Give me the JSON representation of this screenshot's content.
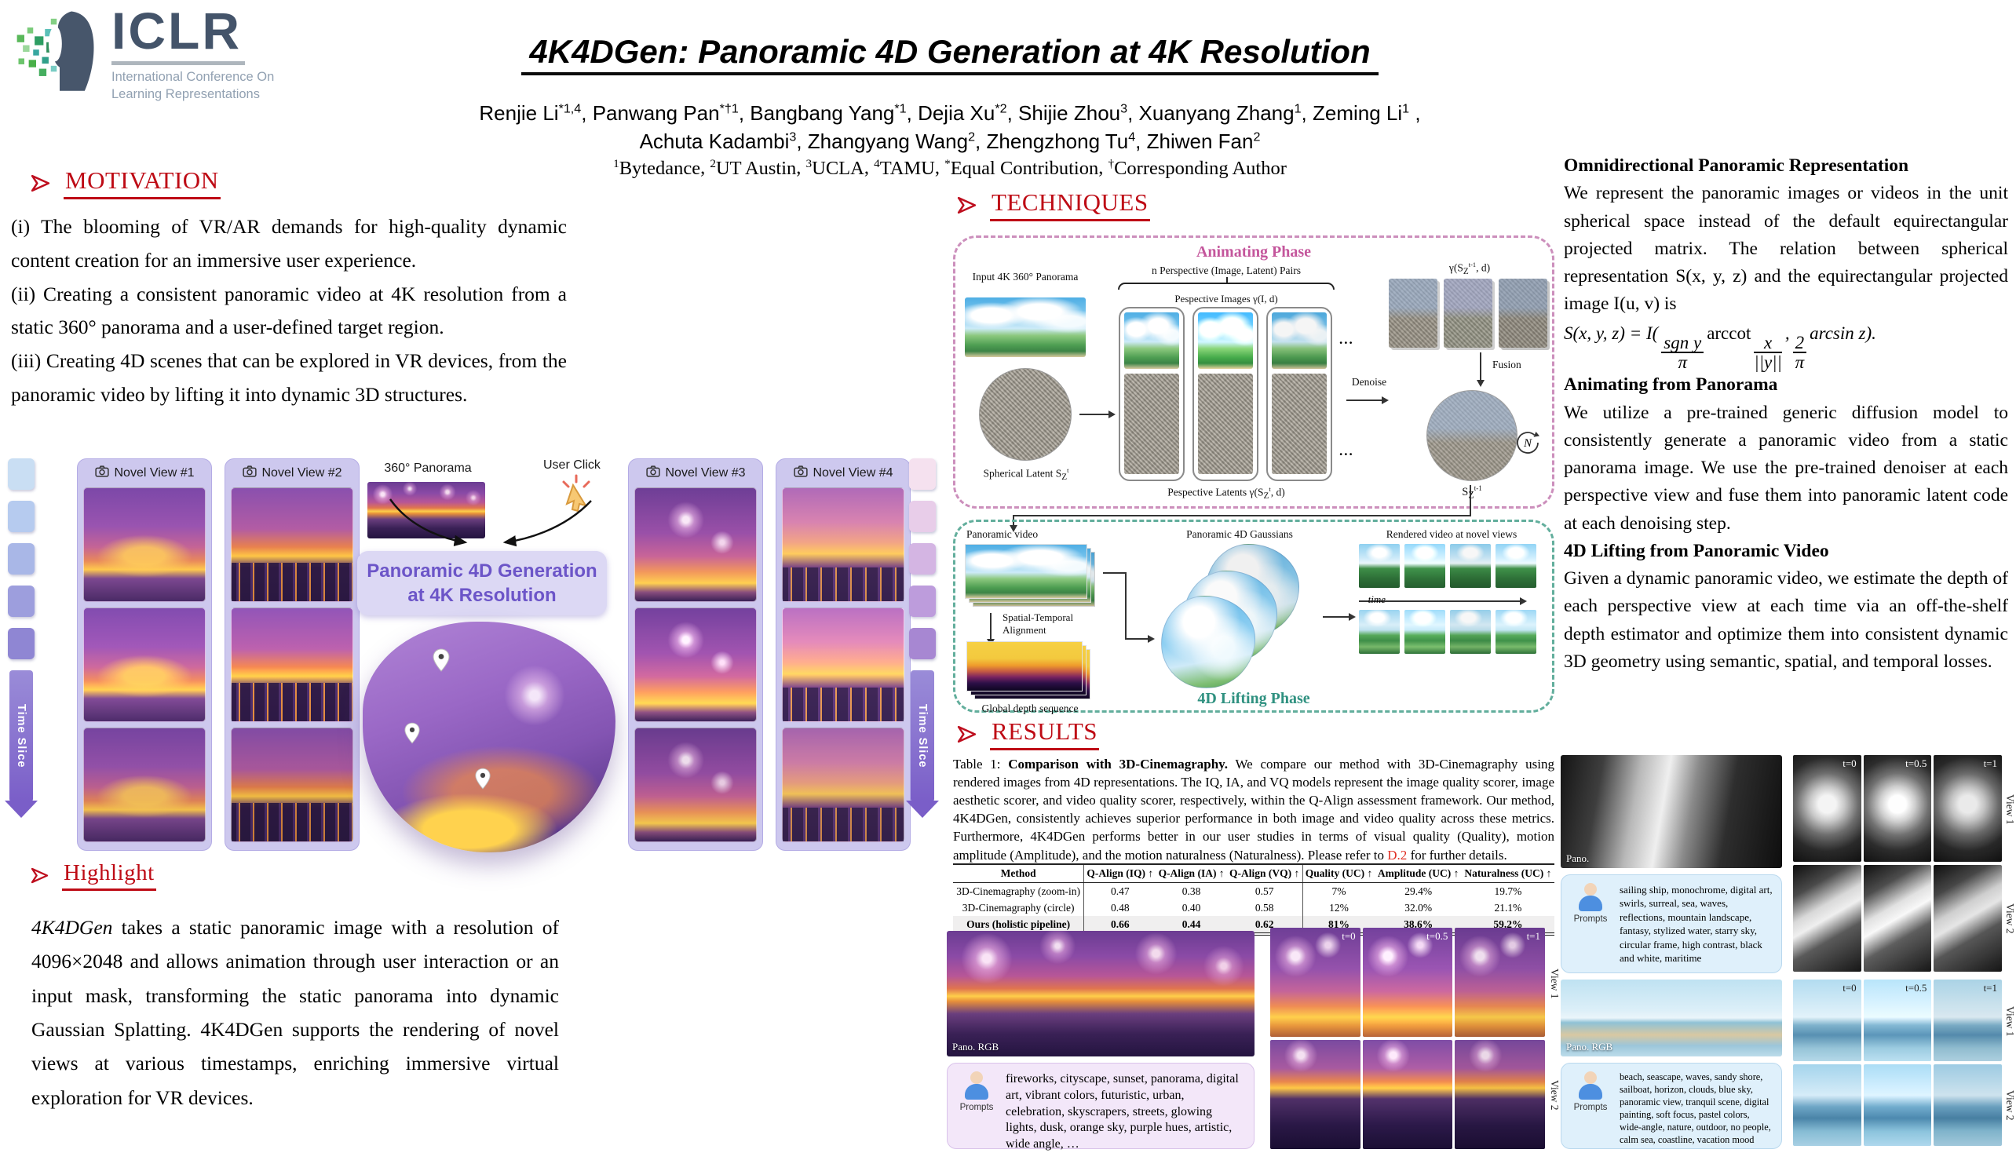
{
  "logo": {
    "acronym": "ICLR",
    "subtitle_line1": "International Conference On",
    "subtitle_line2": "Learning Representations"
  },
  "header": {
    "title": "4K4DGen: Panoramic 4D Generation at 4K Resolution",
    "authors_line1": [
      {
        "name": "Renjie Li",
        "sup": "*1,4"
      },
      {
        "name": "Panwang Pan",
        "sup": "*†1"
      },
      {
        "name": "Bangbang Yang",
        "sup": "*1"
      },
      {
        "name": "Dejia Xu",
        "sup": "*2"
      },
      {
        "name": "Shijie Zhou",
        "sup": "3"
      },
      {
        "name": "Xuanyang Zhang",
        "sup": "1"
      },
      {
        "name": "Zeming Li",
        "sup": "1"
      }
    ],
    "authors_line1_trailing": " ,",
    "authors_line2": [
      {
        "name": "Achuta Kadambi",
        "sup": "3"
      },
      {
        "name": "Zhangyang Wang",
        "sup": "2"
      },
      {
        "name": "Zhengzhong Tu",
        "sup": "4"
      },
      {
        "name": "Zhiwen Fan",
        "sup": "2"
      }
    ],
    "affiliations": [
      {
        "sup": "1",
        "text": "Bytedance"
      },
      {
        "sup": "2",
        "text": "UT Austin"
      },
      {
        "sup": "3",
        "text": "UCLA"
      },
      {
        "sup": "4",
        "text": "TAMU"
      },
      {
        "sup": "*",
        "text": "Equal Contribution"
      },
      {
        "sup": "†",
        "text": "Corresponding Author"
      }
    ]
  },
  "motivation": {
    "heading": "MOTIVATION",
    "items": [
      "(i) The blooming of VR/AR demands for high-quality dynamic content creation for an immersive user experience.",
      "(ii) Creating a consistent panoramic video at 4K resolution from a static 360° panorama and a user-defined target region.",
      "(iii) Creating 4D scenes that can be explored in VR devices, from the panoramic video by lifting it into dynamic 3D structures."
    ]
  },
  "teaser": {
    "novel_views": [
      "Novel View #1",
      "Novel View #2",
      "Novel View #3",
      "Novel View #4"
    ],
    "panorama_label": "360° Panorama",
    "user_click_label": "User Click",
    "center_box_line1": "Panoramic 4D Generation",
    "center_box_line2": "at 4K Resolution",
    "time_slice_label": "Time Slice"
  },
  "highlight": {
    "heading": "Highlight",
    "lead": "4K4DGen",
    "text": " takes a static panoramic image with a resolution of 4096×2048 and allows animation through user interaction or an input mask, transforming the static panorama into dynamic Gaussian Splatting. 4K4DGen supports the rendering of novel views at various timestamps, enriching immersive virtual exploration for VR devices."
  },
  "techniques": {
    "heading": "TECHNIQUES",
    "animating": {
      "title": "Animating Phase",
      "input_label": "Input 4K 360° Panorama",
      "spherical_latent_label": "Spherical Latent S_{Z}^{t}",
      "pairs_label": "n Perspective (Image, Latent) Pairs",
      "persp_images_label": "Pespective Images γ(I, d)",
      "persp_latents_label": "Pespective Latents γ(S_{Z}^{t}, d)",
      "denoise_label": "Denoise",
      "fusion_label": "Fusion",
      "latents_out_label": "γ(S_{Z}^{t-1}, d)",
      "sphere_out_label": "S_{Z}^{t-1}",
      "n_label": "N",
      "dots": "..."
    },
    "lifting": {
      "title": "4D Lifting Phase",
      "video_label": "Panoramic video",
      "alignment_line1": "Spatial-Temporal",
      "alignment_line2": "Alignment",
      "depth_label": "Global depth sequence",
      "gaussians_label": "Panoramic 4D Gaussians",
      "rendered_label": "Rendered video at novel views",
      "time_label": "time"
    }
  },
  "right_column": {
    "sections": [
      {
        "heading": "Omnidirectional Panoramic Representation",
        "body": "We represent the panoramic images or videos in the unit spherical space instead of the default equirectangular projected matrix. The relation between spherical representation S(x, y, z) and the equirectangular projected image I(u, v) is"
      },
      {
        "heading": "Animating from Panorama",
        "body": "We utilize a pre-trained generic diffusion model to consistently generate a panoramic video from a static panorama image.  We use the pre-trained denoiser at each perspective view and fuse them into panoramic latent code at each denoising step."
      },
      {
        "heading": "4D Lifting from Panoramic Video",
        "body": "Given a dynamic panoramic video, we estimate the depth of each perspective view at each time via an off-the-shelf depth estimator and optimize them into consistent dynamic 3D geometry using semantic, spatial, and temporal losses."
      }
    ],
    "formula": {
      "lhs": "S(x, y, z) = I(",
      "num1": "sgn y",
      "den1": "π",
      "op1": "arccot",
      "num2": "x",
      "den2": "||y||",
      "comma": ",",
      "num3": "2",
      "den3": "π",
      "tail": "arcsin z)."
    }
  },
  "results": {
    "heading": "RESULTS",
    "caption_prefix": "Table 1: ",
    "caption_bold": "Comparison with 3D-Cinemagraphy.",
    "caption_body": " We compare our method with 3D-Cinemagraphy using rendered images from 4D representations.  The IQ, IA, and VQ models represent the image quality scorer, image aesthetic scorer, and video quality scorer, respectively, within the Q-Align assessment framework.  Our method, 4K4DGen, consistently achieves superior performance in both image and video quality across these metrics.  Furthermore, 4K4DGen performs better in our user studies in terms of visual quality (Quality), motion amplitude (Amplitude), and the motion naturalness (Naturalness). Please refer to ",
    "caption_link": "D.2",
    "caption_suffix": " for further details.",
    "prompts_label": "Prompts",
    "table": {
      "headers": [
        "Method",
        "Q-Align (IQ) ↑",
        "Q-Align (IA) ↑",
        "Q-Align (VQ) ↑",
        "Quality (UC) ↑",
        "Amplitude (UC) ↑",
        "Naturalness (UC) ↑"
      ],
      "rows": [
        {
          "bold": false,
          "cells": [
            "3D-Cinemagraphy (zoom-in)",
            "0.47",
            "0.38",
            "0.57",
            "7%",
            "29.4%",
            "19.7%"
          ]
        },
        {
          "bold": false,
          "cells": [
            "3D-Cinemagraphy (circle)",
            "0.48",
            "0.40",
            "0.58",
            "12%",
            "32.0%",
            "21.1%"
          ]
        },
        {
          "bold": true,
          "cells": [
            "Ours (holistic pipeline)",
            "0.66",
            "0.44",
            "0.62",
            "81%",
            "38.6%",
            "59.2%"
          ]
        }
      ]
    },
    "examples": [
      {
        "id": "fireworks",
        "pano_label": "Pano. RGB",
        "prompt": "fireworks, cityscape, sunset, panorama, digital art, vibrant colors, futuristic, urban, celebration, skyscrapers, streets, glowing lights, dusk, orange sky, purple hues, artistic, wide angle, …",
        "times": [
          "t=0",
          "t=0.5",
          "t=1"
        ],
        "views": [
          "View 1",
          "View 2"
        ]
      },
      {
        "id": "ship",
        "pano_label": "Pano.",
        "prompt": "sailing ship, monochrome, digital art, swirls, surreal, sea, waves, reflections, mountain landscape, fantasy, stylized water, starry sky, circular frame, high contrast, black and white, maritime",
        "times": [
          "t=0",
          "t=0.5",
          "t=1"
        ],
        "views": [
          "View 1",
          "View 2"
        ]
      },
      {
        "id": "beach",
        "pano_label": "Pano. RGB",
        "prompt": "beach, seascape, waves, sandy shore, sailboat, horizon, clouds, blue sky, panoramic view, tranquil scene, digital painting, soft focus, pastel colors, wide-angle, nature, outdoor, no people, calm sea, coastline, vacation mood",
        "times": [
          "t=0",
          "t=0.5",
          "t=1"
        ],
        "views": [
          "View 1",
          "View 2"
        ]
      }
    ]
  }
}
